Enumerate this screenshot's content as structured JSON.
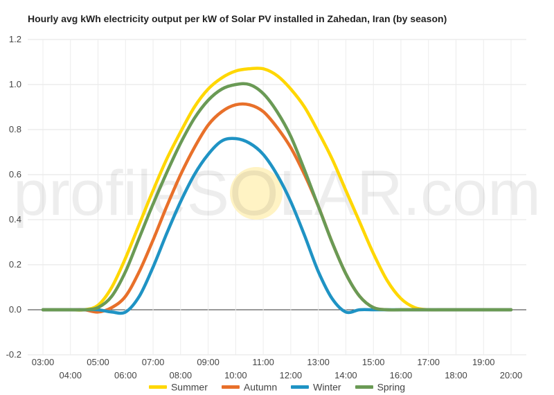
{
  "chart_data": {
    "type": "line",
    "title": "Hourly avg kWh electricity output per kW of Solar PV installed in Zahedan, Iran (by season)",
    "xlabel": "",
    "ylabel": "",
    "x_labels": [
      "03:00",
      "04:00",
      "05:00",
      "06:00",
      "07:00",
      "08:00",
      "09:00",
      "10:00",
      "11:00",
      "12:00",
      "13:00",
      "14:00",
      "15:00",
      "16:00",
      "17:00",
      "18:00",
      "19:00",
      "20:00"
    ],
    "x": [
      3,
      3.5,
      4,
      4.5,
      5,
      5.5,
      6,
      6.5,
      7,
      7.5,
      8,
      8.5,
      9,
      9.5,
      10,
      10.5,
      11,
      11.5,
      12,
      12.5,
      13,
      13.5,
      14,
      14.5,
      15,
      15.5,
      16,
      16.5,
      17,
      17.5,
      18,
      18.5,
      19,
      19.5,
      20
    ],
    "ylim": [
      -0.2,
      1.2
    ],
    "yticks": [
      -0.2,
      0.0,
      0.2,
      0.4,
      0.6,
      0.8,
      1.0,
      1.2
    ],
    "grid": true,
    "legend_position": "bottom",
    "watermark": "profileSOLAR.com",
    "series": [
      {
        "name": "Summer",
        "color": "#FFD700",
        "values": [
          0,
          0,
          0,
          0,
          0.02,
          0.1,
          0.23,
          0.38,
          0.53,
          0.67,
          0.79,
          0.9,
          0.98,
          1.03,
          1.06,
          1.07,
          1.07,
          1.04,
          0.98,
          0.9,
          0.79,
          0.67,
          0.53,
          0.39,
          0.25,
          0.13,
          0.05,
          0.01,
          0,
          0,
          0,
          0,
          0,
          0,
          0
        ]
      },
      {
        "name": "Autumn",
        "color": "#E8702A",
        "values": [
          0,
          0,
          0,
          0,
          -0.01,
          0.01,
          0.06,
          0.17,
          0.31,
          0.46,
          0.6,
          0.72,
          0.82,
          0.88,
          0.91,
          0.91,
          0.88,
          0.81,
          0.72,
          0.6,
          0.46,
          0.3,
          0.16,
          0.06,
          0.01,
          0,
          0,
          0,
          0,
          0,
          0,
          0,
          0,
          0,
          0
        ]
      },
      {
        "name": "Winter",
        "color": "#1F93C4",
        "values": [
          0,
          0,
          0,
          0,
          0,
          -0.01,
          -0.01,
          0.06,
          0.19,
          0.34,
          0.48,
          0.6,
          0.69,
          0.75,
          0.76,
          0.74,
          0.69,
          0.6,
          0.48,
          0.33,
          0.17,
          0.05,
          -0.01,
          0,
          0,
          0,
          0,
          0,
          0,
          0,
          0,
          0,
          0,
          0,
          0
        ]
      },
      {
        "name": "Spring",
        "color": "#6A9A55",
        "values": [
          0,
          0,
          0,
          0,
          0.01,
          0.06,
          0.17,
          0.32,
          0.47,
          0.61,
          0.74,
          0.85,
          0.93,
          0.98,
          1.0,
          1.0,
          0.96,
          0.88,
          0.77,
          0.62,
          0.46,
          0.3,
          0.16,
          0.06,
          0.01,
          0,
          0,
          0,
          0,
          0,
          0,
          0,
          0,
          0,
          0
        ]
      }
    ]
  }
}
